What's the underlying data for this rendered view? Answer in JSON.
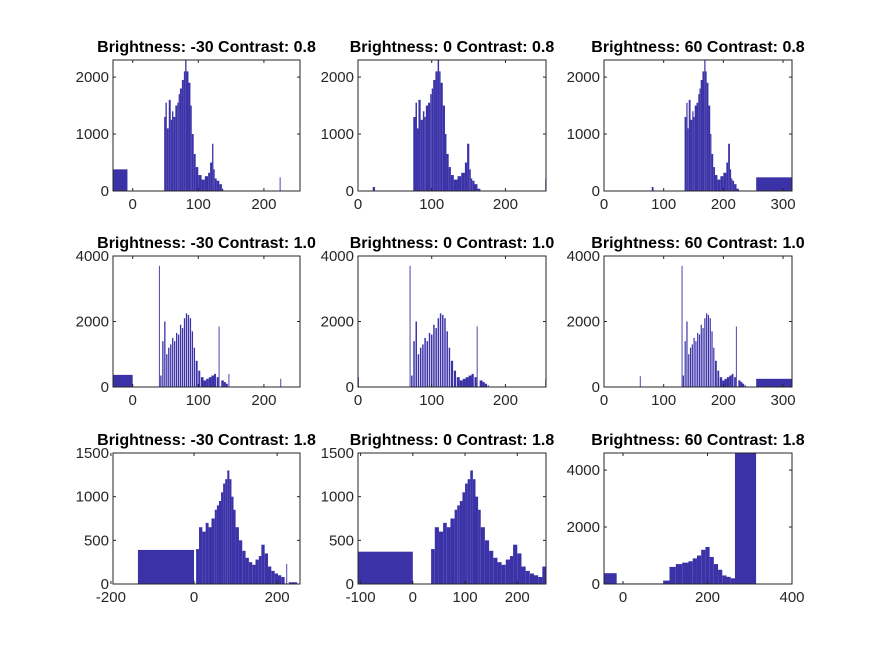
{
  "colors": {
    "bar": "#3b32a8",
    "axis": "#262626",
    "background": "#ffffff"
  },
  "chart_data": [
    {
      "type": "bar",
      "title": "Brightness: -30 Contrast: 0.8",
      "xlabel": "",
      "ylabel": "",
      "xlim": [
        -30,
        255
      ],
      "ylim": [
        0,
        2300
      ],
      "xticks": [
        0,
        100,
        200
      ],
      "xtick_labels": [
        "0",
        "100",
        "200"
      ],
      "yticks": [
        0,
        1000,
        2000
      ],
      "ytick_labels": [
        "0",
        "1000",
        "2000"
      ],
      "x": [
        -30,
        45,
        48,
        50,
        52,
        55,
        58,
        60,
        62,
        65,
        68,
        70,
        72,
        75,
        78,
        80,
        82,
        85,
        88,
        90,
        93,
        96,
        100,
        105,
        110,
        115,
        118,
        121,
        123,
        125,
        128,
        132,
        136,
        138,
        223,
        224
      ],
      "values": [
        380,
        0,
        1300,
        1550,
        1100,
        1600,
        1250,
        1400,
        1300,
        1500,
        1550,
        1700,
        1800,
        1950,
        2100,
        2300,
        2100,
        1900,
        1500,
        1000,
        650,
        420,
        280,
        200,
        260,
        320,
        500,
        830,
        380,
        220,
        180,
        120,
        40,
        0,
        0,
        240
      ],
      "widths": [
        22,
        3,
        2,
        2,
        3,
        3,
        2,
        2,
        3,
        3,
        2,
        2,
        3,
        3,
        2,
        2,
        3,
        3,
        2,
        3,
        3,
        4,
        5,
        5,
        5,
        3,
        3,
        2,
        2,
        3,
        4,
        4,
        2,
        1,
        1,
        1
      ]
    },
    {
      "type": "bar",
      "title": "Brightness: 0 Contrast: 0.8",
      "xlabel": "",
      "ylabel": "",
      "xlim": [
        0,
        255
      ],
      "ylim": [
        0,
        2300
      ],
      "xticks": [
        0,
        100,
        200
      ],
      "xtick_labels": [
        "0",
        "100",
        "200"
      ],
      "yticks": [
        0,
        1000,
        2000
      ],
      "ytick_labels": [
        "0",
        "1000",
        "2000"
      ],
      "x": [
        20,
        75,
        78,
        80,
        82,
        85,
        88,
        90,
        92,
        95,
        98,
        100,
        102,
        105,
        108,
        110,
        112,
        115,
        118,
        120,
        123,
        126,
        130,
        135,
        140,
        145,
        148,
        151,
        153,
        155,
        158,
        162,
        166,
        254
      ],
      "values": [
        70,
        1300,
        1550,
        1100,
        1600,
        1250,
        1400,
        1300,
        1500,
        1550,
        1700,
        1800,
        1950,
        2100,
        2300,
        2100,
        1900,
        1500,
        1000,
        650,
        420,
        280,
        200,
        260,
        320,
        500,
        830,
        380,
        220,
        180,
        120,
        40,
        10,
        220
      ],
      "widths": [
        3,
        3,
        2,
        2,
        3,
        3,
        2,
        2,
        3,
        3,
        2,
        2,
        3,
        3,
        2,
        2,
        3,
        3,
        2,
        3,
        3,
        4,
        5,
        5,
        5,
        3,
        3,
        2,
        2,
        3,
        4,
        4,
        2,
        1
      ]
    },
    {
      "type": "bar",
      "title": "Brightness: 60 Contrast: 0.8",
      "xlabel": "",
      "ylabel": "",
      "xlim": [
        0,
        315
      ],
      "ylim": [
        0,
        2300
      ],
      "xticks": [
        0,
        100,
        200,
        300
      ],
      "xtick_labels": [
        "0",
        "100",
        "200",
        "300"
      ],
      "yticks": [
        0,
        1000,
        2000
      ],
      "ytick_labels": [
        "0",
        "1000",
        "2000"
      ],
      "x": [
        80,
        135,
        138,
        140,
        142,
        145,
        148,
        150,
        152,
        155,
        158,
        160,
        162,
        165,
        168,
        170,
        172,
        175,
        178,
        180,
        183,
        186,
        190,
        195,
        200,
        205,
        208,
        211,
        213,
        215,
        218,
        222,
        226,
        255
      ],
      "values": [
        70,
        1300,
        1550,
        1100,
        1600,
        1250,
        1400,
        1300,
        1500,
        1550,
        1700,
        1800,
        1950,
        2100,
        2300,
        2100,
        1900,
        1500,
        1000,
        650,
        420,
        280,
        200,
        260,
        320,
        500,
        830,
        380,
        220,
        180,
        120,
        40,
        10,
        240
      ],
      "widths": [
        3,
        3,
        2,
        2,
        3,
        3,
        2,
        2,
        3,
        3,
        2,
        2,
        3,
        3,
        2,
        2,
        3,
        3,
        2,
        3,
        3,
        4,
        5,
        5,
        5,
        3,
        3,
        2,
        2,
        3,
        4,
        4,
        2,
        60
      ]
    },
    {
      "type": "bar",
      "title": "Brightness: -30 Contrast: 1.0",
      "xlabel": "",
      "ylabel": "",
      "xlim": [
        -30,
        255
      ],
      "ylim": [
        0,
        4000
      ],
      "xticks": [
        0,
        100,
        200
      ],
      "xtick_labels": [
        "0",
        "100",
        "200"
      ],
      "yticks": [
        0,
        2000,
        4000
      ],
      "ytick_labels": [
        "0",
        "2000",
        "4000"
      ],
      "x": [
        -30,
        40,
        42,
        45,
        48,
        51,
        54,
        57,
        60,
        63,
        66,
        69,
        72,
        75,
        78,
        81,
        84,
        87,
        90,
        93,
        96,
        100,
        104,
        108,
        112,
        116,
        120,
        124,
        128,
        131,
        135,
        139,
        142,
        146,
        225
      ],
      "values": [
        370,
        3700,
        350,
        1400,
        2000,
        1000,
        1200,
        1300,
        1500,
        1400,
        1650,
        1600,
        1900,
        1800,
        2100,
        2250,
        2200,
        2100,
        1700,
        1200,
        800,
        500,
        300,
        200,
        250,
        300,
        350,
        400,
        300,
        1850,
        200,
        150,
        100,
        400,
        250
      ],
      "widths": [
        30,
        1,
        2,
        2,
        2,
        2,
        2,
        2,
        2,
        2,
        2,
        2,
        2,
        2,
        2,
        2,
        2,
        2,
        2,
        2,
        3,
        3,
        4,
        4,
        4,
        4,
        4,
        3,
        3,
        1,
        4,
        3,
        3,
        1,
        1
      ]
    },
    {
      "type": "bar",
      "title": "Brightness: 0 Contrast: 1.0",
      "xlabel": "",
      "ylabel": "",
      "xlim": [
        0,
        255
      ],
      "ylim": [
        0,
        4000
      ],
      "xticks": [
        0,
        100,
        200
      ],
      "xtick_labels": [
        "0",
        "100",
        "200"
      ],
      "yticks": [
        0,
        2000,
        4000
      ],
      "ytick_labels": [
        "0",
        "2000",
        "4000"
      ],
      "x": [
        0,
        70,
        72,
        75,
        78,
        81,
        84,
        87,
        90,
        93,
        96,
        99,
        102,
        105,
        108,
        111,
        114,
        117,
        120,
        123,
        126,
        130,
        134,
        138,
        142,
        146,
        150,
        154,
        158,
        161,
        165,
        169,
        172,
        176,
        254
      ],
      "values": [
        300,
        3700,
        350,
        1400,
        2000,
        1000,
        1200,
        1300,
        1500,
        1400,
        1650,
        1600,
        1900,
        1800,
        2100,
        2250,
        2200,
        2100,
        1700,
        1200,
        800,
        500,
        300,
        200,
        250,
        300,
        350,
        400,
        300,
        1850,
        200,
        150,
        100,
        60,
        250
      ],
      "widths": [
        1,
        1,
        2,
        2,
        2,
        2,
        2,
        2,
        2,
        2,
        2,
        2,
        2,
        2,
        2,
        2,
        2,
        2,
        2,
        2,
        3,
        3,
        4,
        4,
        4,
        4,
        4,
        3,
        3,
        1,
        4,
        3,
        3,
        1,
        1
      ]
    },
    {
      "type": "bar",
      "title": "Brightness: 60 Contrast: 1.0",
      "xlabel": "",
      "ylabel": "",
      "xlim": [
        0,
        315
      ],
      "ylim": [
        0,
        4000
      ],
      "xticks": [
        0,
        100,
        200,
        300
      ],
      "xtick_labels": [
        "0",
        "100",
        "200",
        "300"
      ],
      "yticks": [
        0,
        2000,
        4000
      ],
      "ytick_labels": [
        "0",
        "2000",
        "4000"
      ],
      "x": [
        60,
        130,
        132,
        135,
        138,
        141,
        144,
        147,
        150,
        153,
        156,
        159,
        162,
        165,
        168,
        171,
        174,
        177,
        180,
        183,
        186,
        190,
        194,
        198,
        202,
        206,
        210,
        214,
        218,
        221,
        225,
        229,
        232,
        236,
        255
      ],
      "values": [
        330,
        3700,
        350,
        1400,
        2000,
        1000,
        1200,
        1300,
        1500,
        1400,
        1650,
        1600,
        1900,
        1800,
        2100,
        2250,
        2200,
        2100,
        1700,
        1200,
        800,
        500,
        300,
        200,
        250,
        300,
        350,
        400,
        300,
        1850,
        200,
        150,
        100,
        60,
        250
      ],
      "widths": [
        1,
        1,
        2,
        2,
        2,
        2,
        2,
        2,
        2,
        2,
        2,
        2,
        2,
        2,
        2,
        2,
        2,
        2,
        2,
        2,
        3,
        3,
        4,
        4,
        4,
        4,
        4,
        3,
        3,
        1,
        4,
        3,
        3,
        1,
        60
      ]
    },
    {
      "type": "bar",
      "title": "Brightness: -30 Contrast: 1.8",
      "xlabel": "",
      "ylabel": "",
      "xlim": [
        -195,
        255
      ],
      "ylim": [
        0,
        1500
      ],
      "xticks": [
        -200,
        0,
        200
      ],
      "xtick_labels": [
        "-200",
        "0",
        "200"
      ],
      "yticks": [
        0,
        500,
        1000,
        1500
      ],
      "ytick_labels": [
        "0",
        "500",
        "1000",
        "1500"
      ],
      "x": [
        -135,
        5,
        12,
        20,
        28,
        35,
        42,
        50,
        55,
        60,
        65,
        70,
        75,
        80,
        85,
        90,
        95,
        100,
        108,
        116,
        124,
        132,
        140,
        148,
        156,
        162,
        170,
        178,
        186,
        194,
        202,
        210,
        222,
        228
      ],
      "values": [
        390,
        400,
        650,
        600,
        700,
        650,
        750,
        850,
        900,
        950,
        1050,
        1150,
        1200,
        1300,
        1200,
        1000,
        850,
        650,
        500,
        380,
        300,
        250,
        220,
        280,
        320,
        450,
        350,
        200,
        150,
        120,
        100,
        80,
        230,
        20
      ],
      "widths": [
        135,
        7,
        8,
        8,
        7,
        7,
        8,
        5,
        5,
        5,
        5,
        5,
        5,
        5,
        5,
        5,
        5,
        8,
        8,
        8,
        8,
        8,
        8,
        8,
        6,
        8,
        8,
        8,
        8,
        8,
        8,
        8,
        2,
        20
      ]
    },
    {
      "type": "bar",
      "title": "Brightness: 0 Contrast: 1.8",
      "xlabel": "",
      "ylabel": "",
      "xlim": [
        -105,
        255
      ],
      "ylim": [
        0,
        1500
      ],
      "xticks": [
        -100,
        0,
        100,
        200
      ],
      "xtick_labels": [
        "-100",
        "0",
        "100",
        "200"
      ],
      "yticks": [
        0,
        500,
        1000,
        1500
      ],
      "ytick_labels": [
        "0",
        "500",
        "1000",
        "1500"
      ],
      "x": [
        -105,
        35,
        42,
        50,
        58,
        65,
        72,
        80,
        85,
        90,
        95,
        100,
        105,
        110,
        115,
        120,
        125,
        130,
        138,
        146,
        154,
        162,
        170,
        178,
        186,
        192,
        200,
        208,
        216,
        224,
        232,
        240,
        248
      ],
      "values": [
        370,
        400,
        650,
        600,
        700,
        650,
        750,
        850,
        900,
        950,
        1050,
        1150,
        1200,
        1300,
        1200,
        1000,
        850,
        650,
        500,
        380,
        300,
        250,
        220,
        280,
        320,
        450,
        350,
        200,
        150,
        120,
        100,
        80,
        200
      ],
      "widths": [
        105,
        7,
        8,
        8,
        7,
        7,
        8,
        5,
        5,
        5,
        5,
        5,
        5,
        5,
        5,
        5,
        5,
        8,
        8,
        8,
        8,
        8,
        8,
        8,
        6,
        8,
        8,
        8,
        8,
        8,
        8,
        8,
        7
      ]
    },
    {
      "type": "bar",
      "title": "Brightness: 60 Contrast: 1.8",
      "xlabel": "",
      "ylabel": "",
      "xlim": [
        -45,
        400
      ],
      "ylim": [
        0,
        4600
      ],
      "xticks": [
        0,
        200,
        400
      ],
      "xtick_labels": [
        "0",
        "200",
        "400"
      ],
      "yticks": [
        0,
        2000,
        4000
      ],
      "ytick_labels": [
        "0",
        "2000",
        "4000"
      ],
      "x": [
        -45,
        -15,
        95,
        110,
        125,
        140,
        155,
        165,
        175,
        185,
        195,
        205,
        215,
        225,
        235,
        245,
        255,
        265,
        315
      ],
      "values": [
        380,
        20,
        120,
        600,
        700,
        750,
        800,
        900,
        1000,
        1200,
        1300,
        950,
        700,
        500,
        300,
        250,
        200,
        4600,
        0
      ],
      "widths": [
        30,
        110,
        15,
        15,
        15,
        15,
        10,
        10,
        10,
        10,
        10,
        10,
        10,
        10,
        10,
        10,
        10,
        50,
        1
      ]
    }
  ]
}
